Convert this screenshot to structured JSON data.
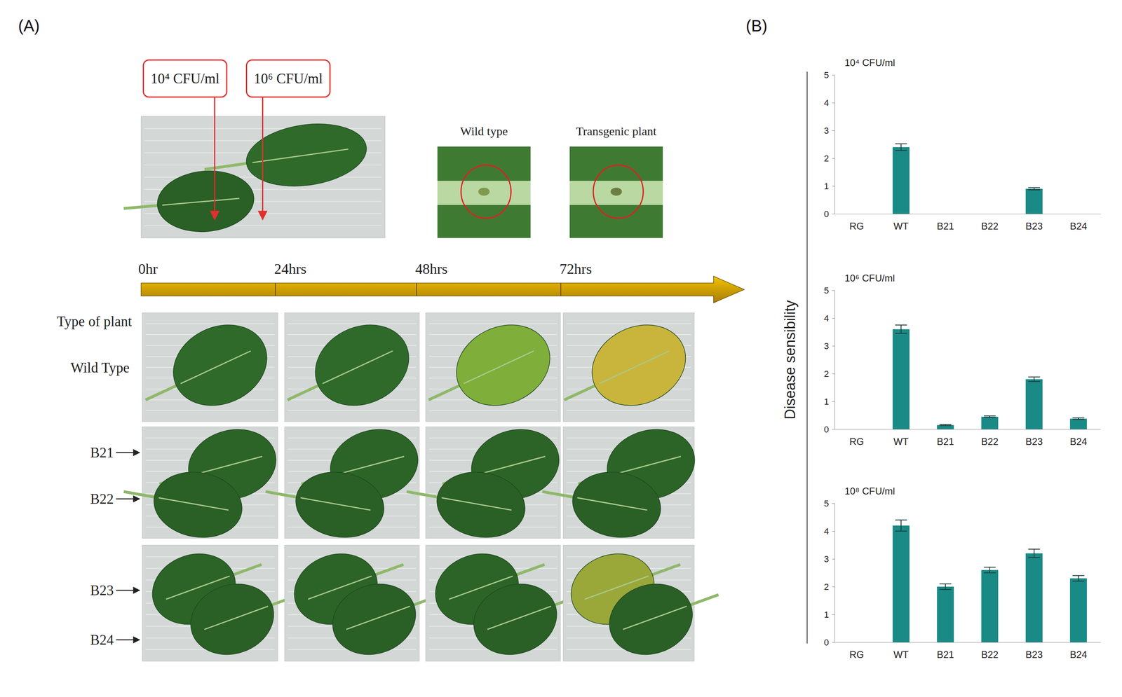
{
  "panel_labels": [
    "(A)",
    "(B)"
  ],
  "panel_a": {
    "inoculation_labels": [
      "10⁴ CFU/ml",
      "10⁶ CFU/ml"
    ],
    "closeup_labels": [
      "Wild type",
      "Transgenic plant"
    ],
    "timeline": [
      "0hr",
      "24hrs",
      "48hrs",
      "72hrs"
    ],
    "row_header": "Type of plant",
    "rows": [
      "Wild Type",
      "B21",
      "B22",
      "B23",
      "B24"
    ]
  },
  "chart_data": [
    {
      "type": "bar",
      "title": "10⁴ CFU/ml",
      "categories": [
        "RG",
        "WT",
        "B21",
        "B22",
        "B23",
        "B24"
      ],
      "values": [
        0,
        2.4,
        0,
        0,
        0.9,
        0
      ],
      "errors": [
        null,
        0.12,
        null,
        null,
        0.04,
        null
      ],
      "color": "#1a8a86",
      "ylim": [
        0,
        5
      ],
      "yticks": [
        0,
        1,
        2,
        3,
        4,
        5
      ]
    },
    {
      "type": "bar",
      "title": "10⁶ CFU/ml",
      "ylabel": "Disease sensibility",
      "categories": [
        "RG",
        "WT",
        "B21",
        "B22",
        "B23",
        "B24"
      ],
      "values": [
        0,
        3.6,
        0.15,
        0.45,
        1.8,
        0.38
      ],
      "errors": [
        null,
        0.15,
        0.02,
        0.03,
        0.08,
        0.03
      ],
      "color": "#1a8a86",
      "ylim": [
        0,
        5
      ],
      "yticks": [
        0,
        1,
        2,
        3,
        4,
        5
      ]
    },
    {
      "type": "bar",
      "title": "10⁸ CFU/ml",
      "categories": [
        "RG",
        "WT",
        "B21",
        "B22",
        "B23",
        "B24"
      ],
      "values": [
        0,
        4.2,
        2.0,
        2.6,
        3.2,
        2.3
      ],
      "errors": [
        null,
        0.2,
        0.1,
        0.1,
        0.15,
        0.1
      ],
      "color": "#1a8a86",
      "ylim": [
        0,
        5
      ],
      "yticks": [
        0,
        1,
        2,
        3,
        4,
        5
      ]
    }
  ]
}
